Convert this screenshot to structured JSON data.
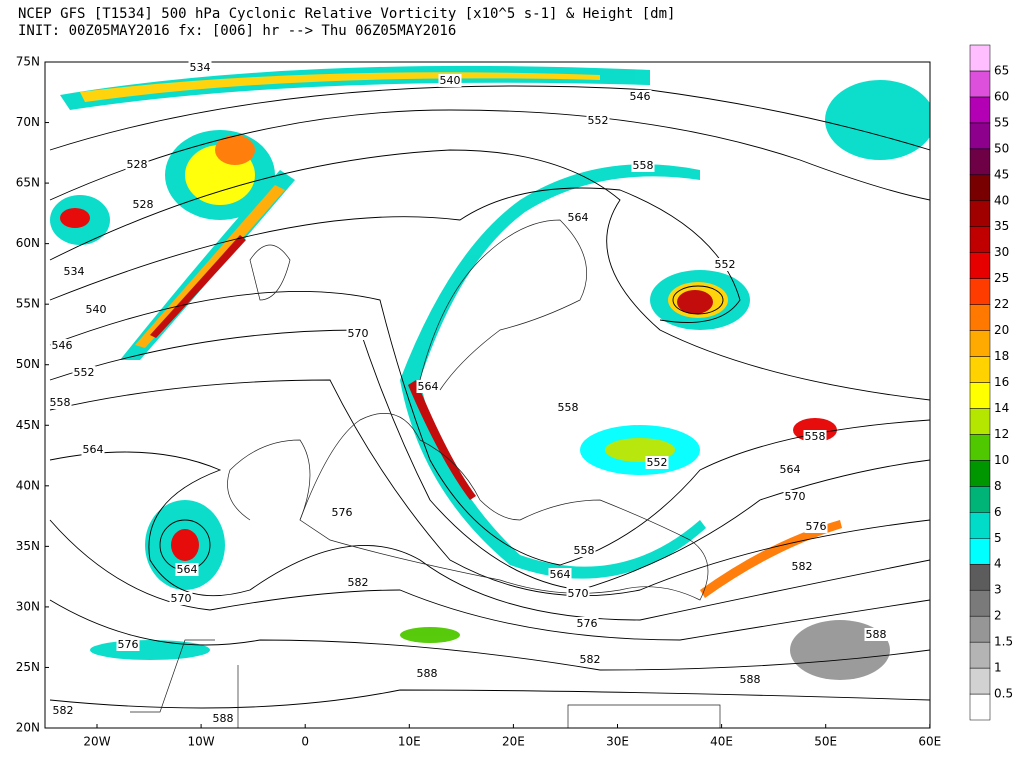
{
  "header": {
    "lines": [
      "NCEP GFS [T1534] 500 hPa Cyclonic Relative Vorticity [x10^5 s-1] & Height [dm]",
      "INIT: 00Z05MAY2016 fx: [006] hr --> Thu 06Z05MAY2016"
    ]
  },
  "map": {
    "lat_labels": [
      "75N",
      "70N",
      "65N",
      "60N",
      "55N",
      "50N",
      "45N",
      "40N",
      "35N",
      "30N",
      "25N",
      "20N"
    ],
    "lon_labels": [
      "20W",
      "10W",
      "0",
      "10E",
      "20E",
      "30E",
      "40E",
      "50E",
      "60E"
    ],
    "contour_labels": [
      "534",
      "540",
      "546",
      "552",
      "558",
      "528",
      "528",
      "564",
      "534",
      "552",
      "540",
      "546",
      "570",
      "552",
      "564",
      "558",
      "558",
      "558",
      "564",
      "552",
      "564",
      "570",
      "576",
      "576",
      "564",
      "558",
      "564",
      "582",
      "582",
      "570",
      "570",
      "576",
      "576",
      "588",
      "582",
      "588",
      "588",
      "582",
      "588"
    ]
  },
  "colorbar": {
    "labels": [
      "0.5",
      "1",
      "1.5",
      "2",
      "3",
      "4",
      "5",
      "6",
      "8",
      "10",
      "12",
      "14",
      "16",
      "18",
      "20",
      "22",
      "25",
      "30",
      "35",
      "40",
      "45",
      "50",
      "55",
      "60",
      "65"
    ],
    "colors": [
      "#ffffff",
      "#d2d2d2",
      "#b4b4b4",
      "#969696",
      "#7a7a7a",
      "#5c5c5c",
      "#00ffff",
      "#00dcc8",
      "#00b478",
      "#009600",
      "#50c800",
      "#b4e600",
      "#ffff00",
      "#ffd200",
      "#ffaa00",
      "#ff7800",
      "#ff3c00",
      "#e60000",
      "#c00000",
      "#a00000",
      "#780000",
      "#6e0046",
      "#8c008c",
      "#b400b4",
      "#dc50dc",
      "#ffbeff"
    ]
  }
}
